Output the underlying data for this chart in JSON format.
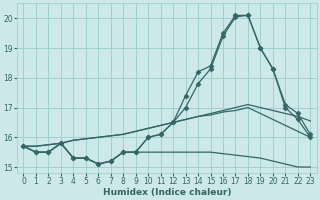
{
  "x": [
    0,
    1,
    2,
    3,
    4,
    5,
    6,
    7,
    8,
    9,
    10,
    11,
    12,
    13,
    14,
    15,
    16,
    17,
    18,
    19,
    20,
    21,
    22,
    23
  ],
  "line_main": [
    15.7,
    15.5,
    15.5,
    15.8,
    15.3,
    15.3,
    15.1,
    15.2,
    15.5,
    15.5,
    16.0,
    16.1,
    16.5,
    17.4,
    18.2,
    18.4,
    19.5,
    20.1,
    20.1,
    19.0,
    18.3,
    17.0,
    16.6,
    16.0
  ],
  "line_second": [
    15.7,
    15.5,
    15.5,
    15.8,
    15.3,
    15.3,
    15.1,
    15.2,
    15.5,
    15.5,
    16.0,
    16.1,
    16.5,
    17.0,
    17.8,
    18.3,
    19.4,
    20.05,
    20.1,
    19.0,
    18.3,
    17.1,
    16.8,
    16.1
  ],
  "line_trend1": [
    15.7,
    15.7,
    15.75,
    15.8,
    15.9,
    15.95,
    16.0,
    16.05,
    16.1,
    16.2,
    16.3,
    16.4,
    16.5,
    16.6,
    16.7,
    16.8,
    16.9,
    17.0,
    17.1,
    17.0,
    16.9,
    16.8,
    16.7,
    16.55
  ],
  "line_trend2": [
    15.7,
    15.7,
    15.75,
    15.8,
    15.9,
    15.95,
    16.0,
    16.05,
    16.1,
    16.2,
    16.3,
    16.4,
    16.5,
    16.6,
    16.7,
    16.75,
    16.85,
    16.9,
    17.0,
    16.8,
    16.6,
    16.4,
    16.2,
    16.0
  ],
  "line_bottom": [
    15.7,
    15.5,
    15.5,
    15.8,
    15.3,
    15.3,
    15.1,
    15.2,
    15.5,
    15.5,
    15.5,
    15.5,
    15.5,
    15.5,
    15.5,
    15.5,
    15.45,
    15.4,
    15.35,
    15.3,
    15.2,
    15.1,
    15.0,
    15.0
  ],
  "bg_color": "#cce8e8",
  "grid_color": "#99cccc",
  "line_color": "#336666",
  "xlabel": "Humidex (Indice chaleur)",
  "xlim": [
    -0.5,
    23.5
  ],
  "ylim": [
    14.8,
    20.5
  ],
  "yticks": [
    15,
    16,
    17,
    18,
    19,
    20
  ],
  "xticks": [
    0,
    1,
    2,
    3,
    4,
    5,
    6,
    7,
    8,
    9,
    10,
    11,
    12,
    13,
    14,
    15,
    16,
    17,
    18,
    19,
    20,
    21,
    22,
    23
  ]
}
